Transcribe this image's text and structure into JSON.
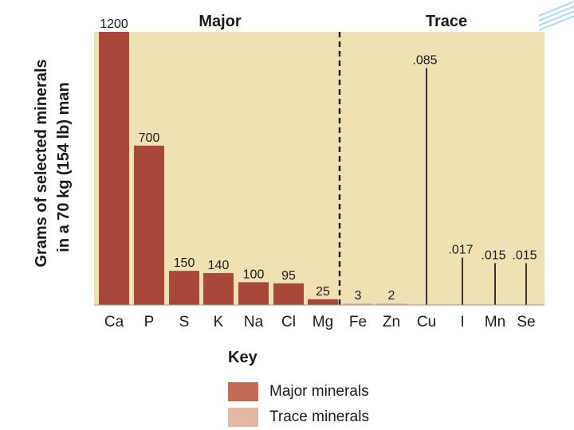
{
  "colors": {
    "plot_bg": "#f0e1b5",
    "major": "#a8483a",
    "trace": "#e1b5a2",
    "text": "#1a1a1a",
    "divider": "#222222",
    "accent": "#7ec8e3"
  },
  "chart_data": {
    "type": "bar",
    "ylabel_line1": "Grams of selected minerals",
    "ylabel_line2": "in a 70 kg (154 lb) man",
    "section_labels": {
      "major": "Major",
      "trace": "Trace"
    },
    "categories": [
      "Ca",
      "P",
      "S",
      "K",
      "Na",
      "Cl",
      "Mg",
      "Fe",
      "Zn",
      "Cu",
      "I",
      "Mn",
      "Se"
    ],
    "values": [
      1200,
      700,
      150,
      140,
      100,
      95,
      25,
      3,
      2,
      0.085,
      0.017,
      0.015,
      0.015
    ],
    "value_labels": [
      "1200",
      "700",
      "150",
      "140",
      "100",
      "95",
      "25",
      "3",
      "2",
      ".085",
      ".017",
      ".015",
      ".015"
    ],
    "groups": [
      "major",
      "major",
      "major",
      "major",
      "major",
      "major",
      "major",
      "trace",
      "trace",
      "trace",
      "trace",
      "trace",
      "trace"
    ],
    "y_scale": "mixed (major linear, trace enlarged)",
    "grid": false
  },
  "key": {
    "title": "Key",
    "major_label": "Major minerals",
    "trace_label": "Trace minerals"
  }
}
